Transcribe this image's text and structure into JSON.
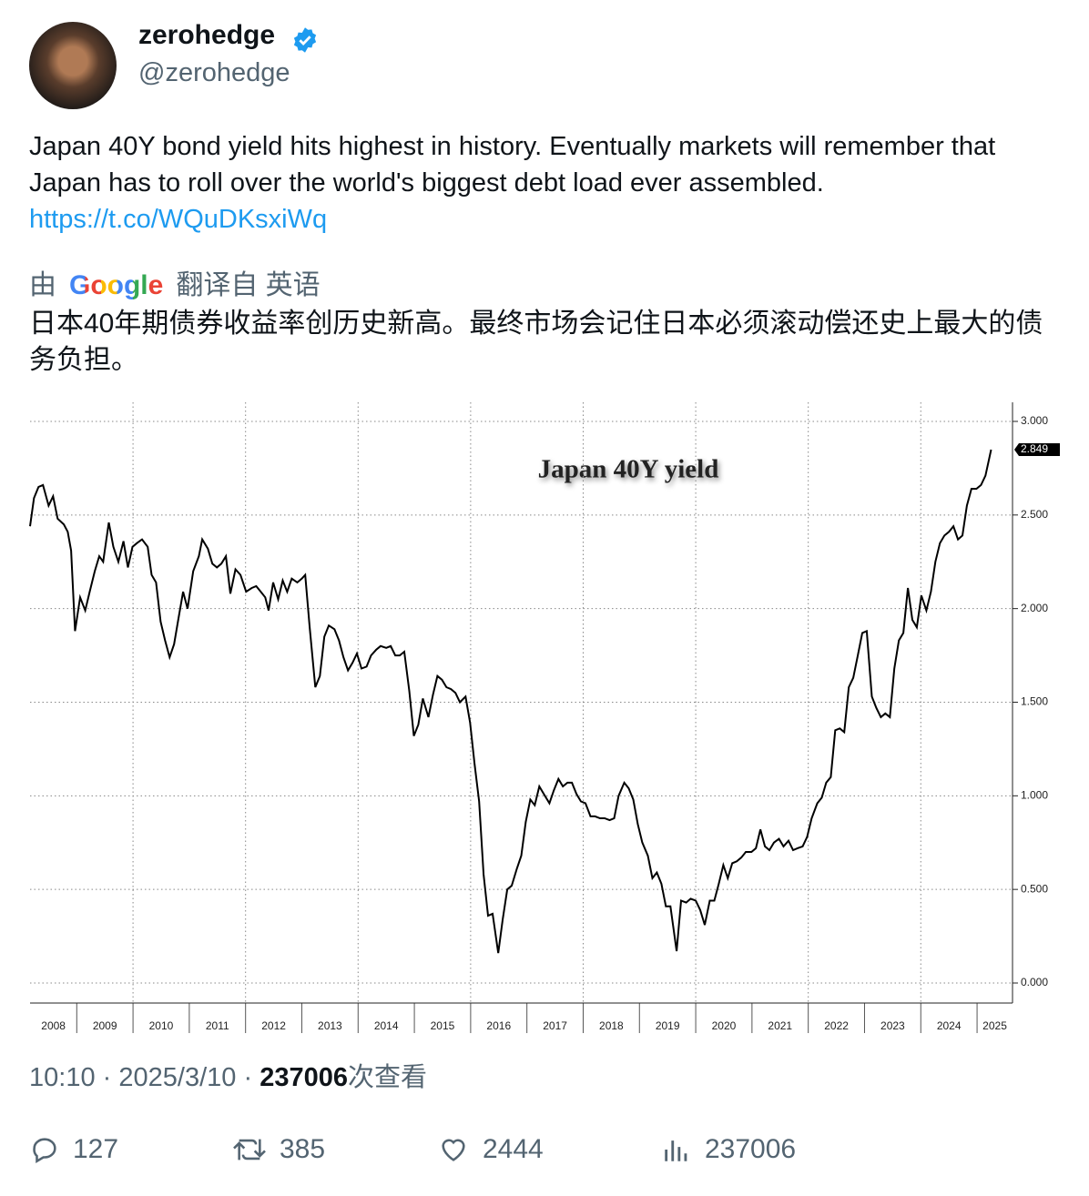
{
  "user": {
    "name": "zerohedge",
    "handle": "@zerohedge"
  },
  "tweet": {
    "text": "Japan 40Y bond yield hits highest in history. Eventually markets will remember that Japan has to roll over the world's biggest debt load ever assembled.",
    "link": "https://t.co/WQuDKsxiWq"
  },
  "translation": {
    "prefix": "由",
    "provider": "Google",
    "suffix": "翻译自 英语",
    "text": "日本40年期债券收益率创历史新高。最终市场会记住日本必须滚动偿还史上最大的债务负担。"
  },
  "meta": {
    "time": "10:10",
    "separator": "·",
    "date": "2025/3/10",
    "views": 237006,
    "views_label": "次查看"
  },
  "stats": {
    "replies": 127,
    "retweets": 385,
    "likes": 2444,
    "views": 237006
  },
  "chart_data": {
    "type": "line",
    "title": "Japan 40Y yield",
    "x": [
      2008.17,
      2008.24,
      2008.32,
      2008.4,
      2008.5,
      2008.58,
      2008.66,
      2008.77,
      2008.84,
      2008.9,
      2008.97,
      2009.06,
      2009.15,
      2009.23,
      2009.32,
      2009.4,
      2009.47,
      2009.57,
      2009.65,
      2009.74,
      2009.83,
      2009.91,
      2009.99,
      2010.07,
      2010.16,
      2010.26,
      2010.33,
      2010.41,
      2010.49,
      2010.57,
      2010.65,
      2010.73,
      2010.81,
      2010.89,
      2010.97,
      2011.07,
      2011.17,
      2011.23,
      2011.33,
      2011.41,
      2011.49,
      2011.57,
      2011.65,
      2011.73,
      2011.82,
      2011.91,
      2012.01,
      2012.11,
      2012.19,
      2012.27,
      2012.35,
      2012.41,
      2012.49,
      2012.58,
      2012.66,
      2012.74,
      2012.82,
      2012.92,
      2013.0,
      2013.06,
      2013.14,
      2013.24,
      2013.32,
      2013.4,
      2013.48,
      2013.58,
      2013.66,
      2013.74,
      2013.82,
      2013.9,
      2013.98,
      2014.06,
      2014.15,
      2014.23,
      2014.32,
      2014.4,
      2014.5,
      2014.58,
      2014.66,
      2014.74,
      2014.82,
      2014.91,
      2014.99,
      2015.07,
      2015.15,
      2015.25,
      2015.33,
      2015.41,
      2015.49,
      2015.57,
      2015.65,
      2015.73,
      2015.81,
      2015.91,
      2015.99,
      2016.07,
      2016.15,
      2016.23,
      2016.31,
      2016.39,
      2016.49,
      2016.57,
      2016.65,
      2016.73,
      2016.82,
      2016.9,
      2016.98,
      2017.06,
      2017.14,
      2017.22,
      2017.3,
      2017.4,
      2017.48,
      2017.56,
      2017.64,
      2017.72,
      2017.8,
      2017.88,
      2017.96,
      2018.04,
      2018.13,
      2018.21,
      2018.3,
      2018.38,
      2018.47,
      2018.55,
      2018.63,
      2018.73,
      2018.81,
      2018.89,
      2018.97,
      2019.05,
      2019.15,
      2019.23,
      2019.31,
      2019.39,
      2019.47,
      2019.55,
      2019.66,
      2019.74,
      2019.83,
      2019.91,
      2020.0,
      2020.08,
      2020.16,
      2020.25,
      2020.33,
      2020.41,
      2020.49,
      2020.57,
      2020.65,
      2020.73,
      2020.81,
      2020.89,
      2020.99,
      2021.07,
      2021.15,
      2021.23,
      2021.31,
      2021.39,
      2021.48,
      2021.56,
      2021.65,
      2021.73,
      2021.81,
      2021.9,
      2021.98,
      2022.06,
      2022.16,
      2022.24,
      2022.32,
      2022.4,
      2022.48,
      2022.56,
      2022.64,
      2022.72,
      2022.8,
      2022.88,
      2022.96,
      2023.04,
      2023.13,
      2023.21,
      2023.29,
      2023.37,
      2023.45,
      2023.53,
      2023.61,
      2023.69,
      2023.77,
      2023.85,
      2023.93,
      2024.01,
      2024.1,
      2024.18,
      2024.26,
      2024.34,
      2024.42,
      2024.5,
      2024.58,
      2024.66,
      2024.74,
      2024.82,
      2024.9,
      2024.99,
      2025.07,
      2025.15,
      2025.25
    ],
    "series": [
      {
        "color": "#000000",
        "values": [
          2.44,
          2.59,
          2.65,
          2.66,
          2.55,
          2.6,
          2.48,
          2.45,
          2.41,
          2.31,
          1.88,
          2.06,
          1.99,
          2.09,
          2.2,
          2.28,
          2.25,
          2.46,
          2.33,
          2.25,
          2.36,
          2.22,
          2.33,
          2.35,
          2.37,
          2.33,
          2.18,
          2.14,
          1.93,
          1.83,
          1.74,
          1.81,
          1.95,
          2.09,
          2.0,
          2.2,
          2.28,
          2.37,
          2.32,
          2.24,
          2.22,
          2.24,
          2.28,
          2.08,
          2.21,
          2.18,
          2.09,
          2.11,
          2.12,
          2.09,
          2.06,
          1.99,
          2.14,
          2.05,
          2.15,
          2.09,
          2.16,
          2.14,
          2.16,
          2.18,
          1.9,
          1.58,
          1.64,
          1.85,
          1.91,
          1.89,
          1.83,
          1.74,
          1.67,
          1.71,
          1.76,
          1.68,
          1.69,
          1.75,
          1.78,
          1.8,
          1.79,
          1.8,
          1.75,
          1.75,
          1.77,
          1.56,
          1.32,
          1.38,
          1.52,
          1.42,
          1.54,
          1.64,
          1.62,
          1.58,
          1.57,
          1.55,
          1.5,
          1.53,
          1.39,
          1.17,
          0.97,
          0.58,
          0.36,
          0.37,
          0.16,
          0.34,
          0.5,
          0.52,
          0.61,
          0.68,
          0.86,
          0.98,
          0.95,
          1.05,
          1.01,
          0.96,
          1.03,
          1.09,
          1.05,
          1.07,
          1.07,
          1.01,
          0.97,
          0.96,
          0.89,
          0.89,
          0.88,
          0.88,
          0.87,
          0.88,
          1.0,
          1.07,
          1.04,
          0.98,
          0.85,
          0.75,
          0.68,
          0.56,
          0.59,
          0.53,
          0.41,
          0.41,
          0.17,
          0.44,
          0.43,
          0.45,
          0.44,
          0.39,
          0.31,
          0.44,
          0.44,
          0.53,
          0.63,
          0.56,
          0.64,
          0.65,
          0.67,
          0.7,
          0.7,
          0.72,
          0.82,
          0.73,
          0.71,
          0.75,
          0.77,
          0.73,
          0.76,
          0.71,
          0.72,
          0.73,
          0.78,
          0.88,
          0.96,
          0.99,
          1.07,
          1.1,
          1.35,
          1.36,
          1.34,
          1.58,
          1.63,
          1.75,
          1.87,
          1.88,
          1.53,
          1.47,
          1.42,
          1.44,
          1.42,
          1.68,
          1.83,
          1.87,
          2.11,
          1.94,
          1.9,
          2.07,
          1.99,
          2.09,
          2.25,
          2.35,
          2.39,
          2.41,
          2.44,
          2.37,
          2.39,
          2.55,
          2.64,
          2.64,
          2.66,
          2.71,
          2.849
        ]
      }
    ],
    "annotations": [
      {
        "x": 2025.25,
        "value": 2.849
      }
    ],
    "xlim": [
      2008.17,
      2025.63
    ],
    "xticks": [
      2008,
      2009,
      2010,
      2011,
      2012,
      2013,
      2014,
      2015,
      2016,
      2017,
      2018,
      2019,
      2020,
      2021,
      2022,
      2023,
      2024,
      2025
    ],
    "ylim": [
      -0.107,
      3.102
    ],
    "yticks": [
      {
        "value": 0,
        "label": "0.000"
      },
      {
        "value": 0.5,
        "label": "0.500"
      },
      {
        "value": 1,
        "label": "1.000"
      },
      {
        "value": 1.5,
        "label": "1.500"
      },
      {
        "value": 2,
        "label": "2.000"
      },
      {
        "value": 2.5,
        "label": "2.500"
      },
      {
        "value": 3,
        "label": "3.000"
      }
    ],
    "grid": true
  }
}
